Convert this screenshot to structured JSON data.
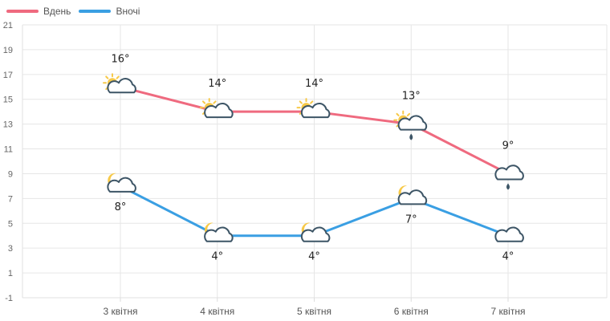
{
  "chart_data": {
    "type": "line",
    "categories": [
      "3 квітня",
      "4 квітня",
      "5 квітня",
      "6 квітня",
      "7 квітня"
    ],
    "series": [
      {
        "name": "Вдень",
        "values": [
          16,
          14,
          14,
          13,
          9
        ],
        "color": "#ef6a7f",
        "icons": [
          "sun-cloud-icon",
          "sun-cloud-icon",
          "sun-cloud-icon",
          "sun-cloud-rain-icon",
          "cloud-rain-icon"
        ]
      },
      {
        "name": "Вночі",
        "values": [
          8,
          4,
          4,
          7,
          4
        ],
        "color": "#3a9fe3",
        "icons": [
          "moon-cloud-icon",
          "moon-cloud-icon",
          "moon-cloud-icon",
          "moon-cloud-icon",
          "cloud-icon"
        ]
      }
    ],
    "labels_suffix": "°",
    "yticks": [
      -1,
      1,
      3,
      5,
      7,
      9,
      11,
      13,
      15,
      17,
      19,
      21
    ],
    "ylim": [
      -1,
      21
    ],
    "grid": true,
    "legend_position": "top-left",
    "title": "",
    "xlabel": "",
    "ylabel": ""
  }
}
